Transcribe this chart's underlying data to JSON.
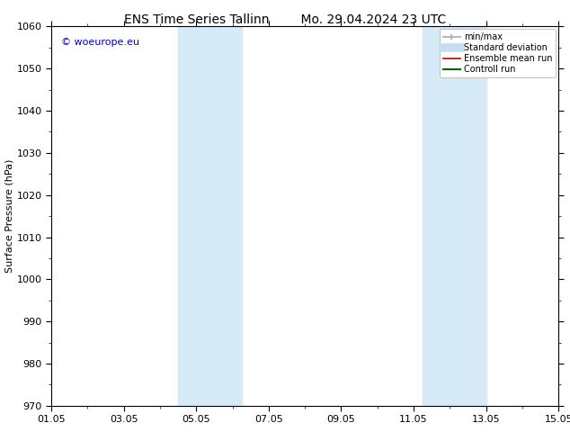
{
  "title_left": "ENS Time Series Tallinn",
  "title_right": "Mo. 29.04.2024 23 UTC",
  "ylabel": "Surface Pressure (hPa)",
  "ylim": [
    970,
    1060
  ],
  "yticks": [
    970,
    980,
    990,
    1000,
    1010,
    1020,
    1030,
    1040,
    1050,
    1060
  ],
  "xlim": [
    0,
    14
  ],
  "xtick_labels": [
    "01.05",
    "03.05",
    "05.05",
    "07.05",
    "09.05",
    "11.05",
    "13.05",
    "15.05"
  ],
  "xtick_positions": [
    0,
    2,
    4,
    6,
    8,
    10,
    12,
    14
  ],
  "shaded_bands": [
    {
      "x_start": 3.5,
      "x_end": 5.25
    },
    {
      "x_start": 10.25,
      "x_end": 12.0
    }
  ],
  "shaded_color": "#d6eaf8",
  "copyright_text": "© woeurope.eu",
  "copyright_color": "#0000cc",
  "legend_entries": [
    {
      "label": "min/max",
      "color": "#aaaaaa",
      "lw": 1.2,
      "style": "errorbar"
    },
    {
      "label": "Standard deviation",
      "color": "#c8ddf0",
      "lw": 7,
      "style": "line"
    },
    {
      "label": "Ensemble mean run",
      "color": "#cc0000",
      "lw": 1.2,
      "style": "line"
    },
    {
      "label": "Controll run",
      "color": "#006600",
      "lw": 1.5,
      "style": "line"
    }
  ],
  "bg_color": "#ffffff",
  "title_fontsize": 10,
  "axis_label_fontsize": 8,
  "tick_fontsize": 8,
  "legend_fontsize": 7
}
